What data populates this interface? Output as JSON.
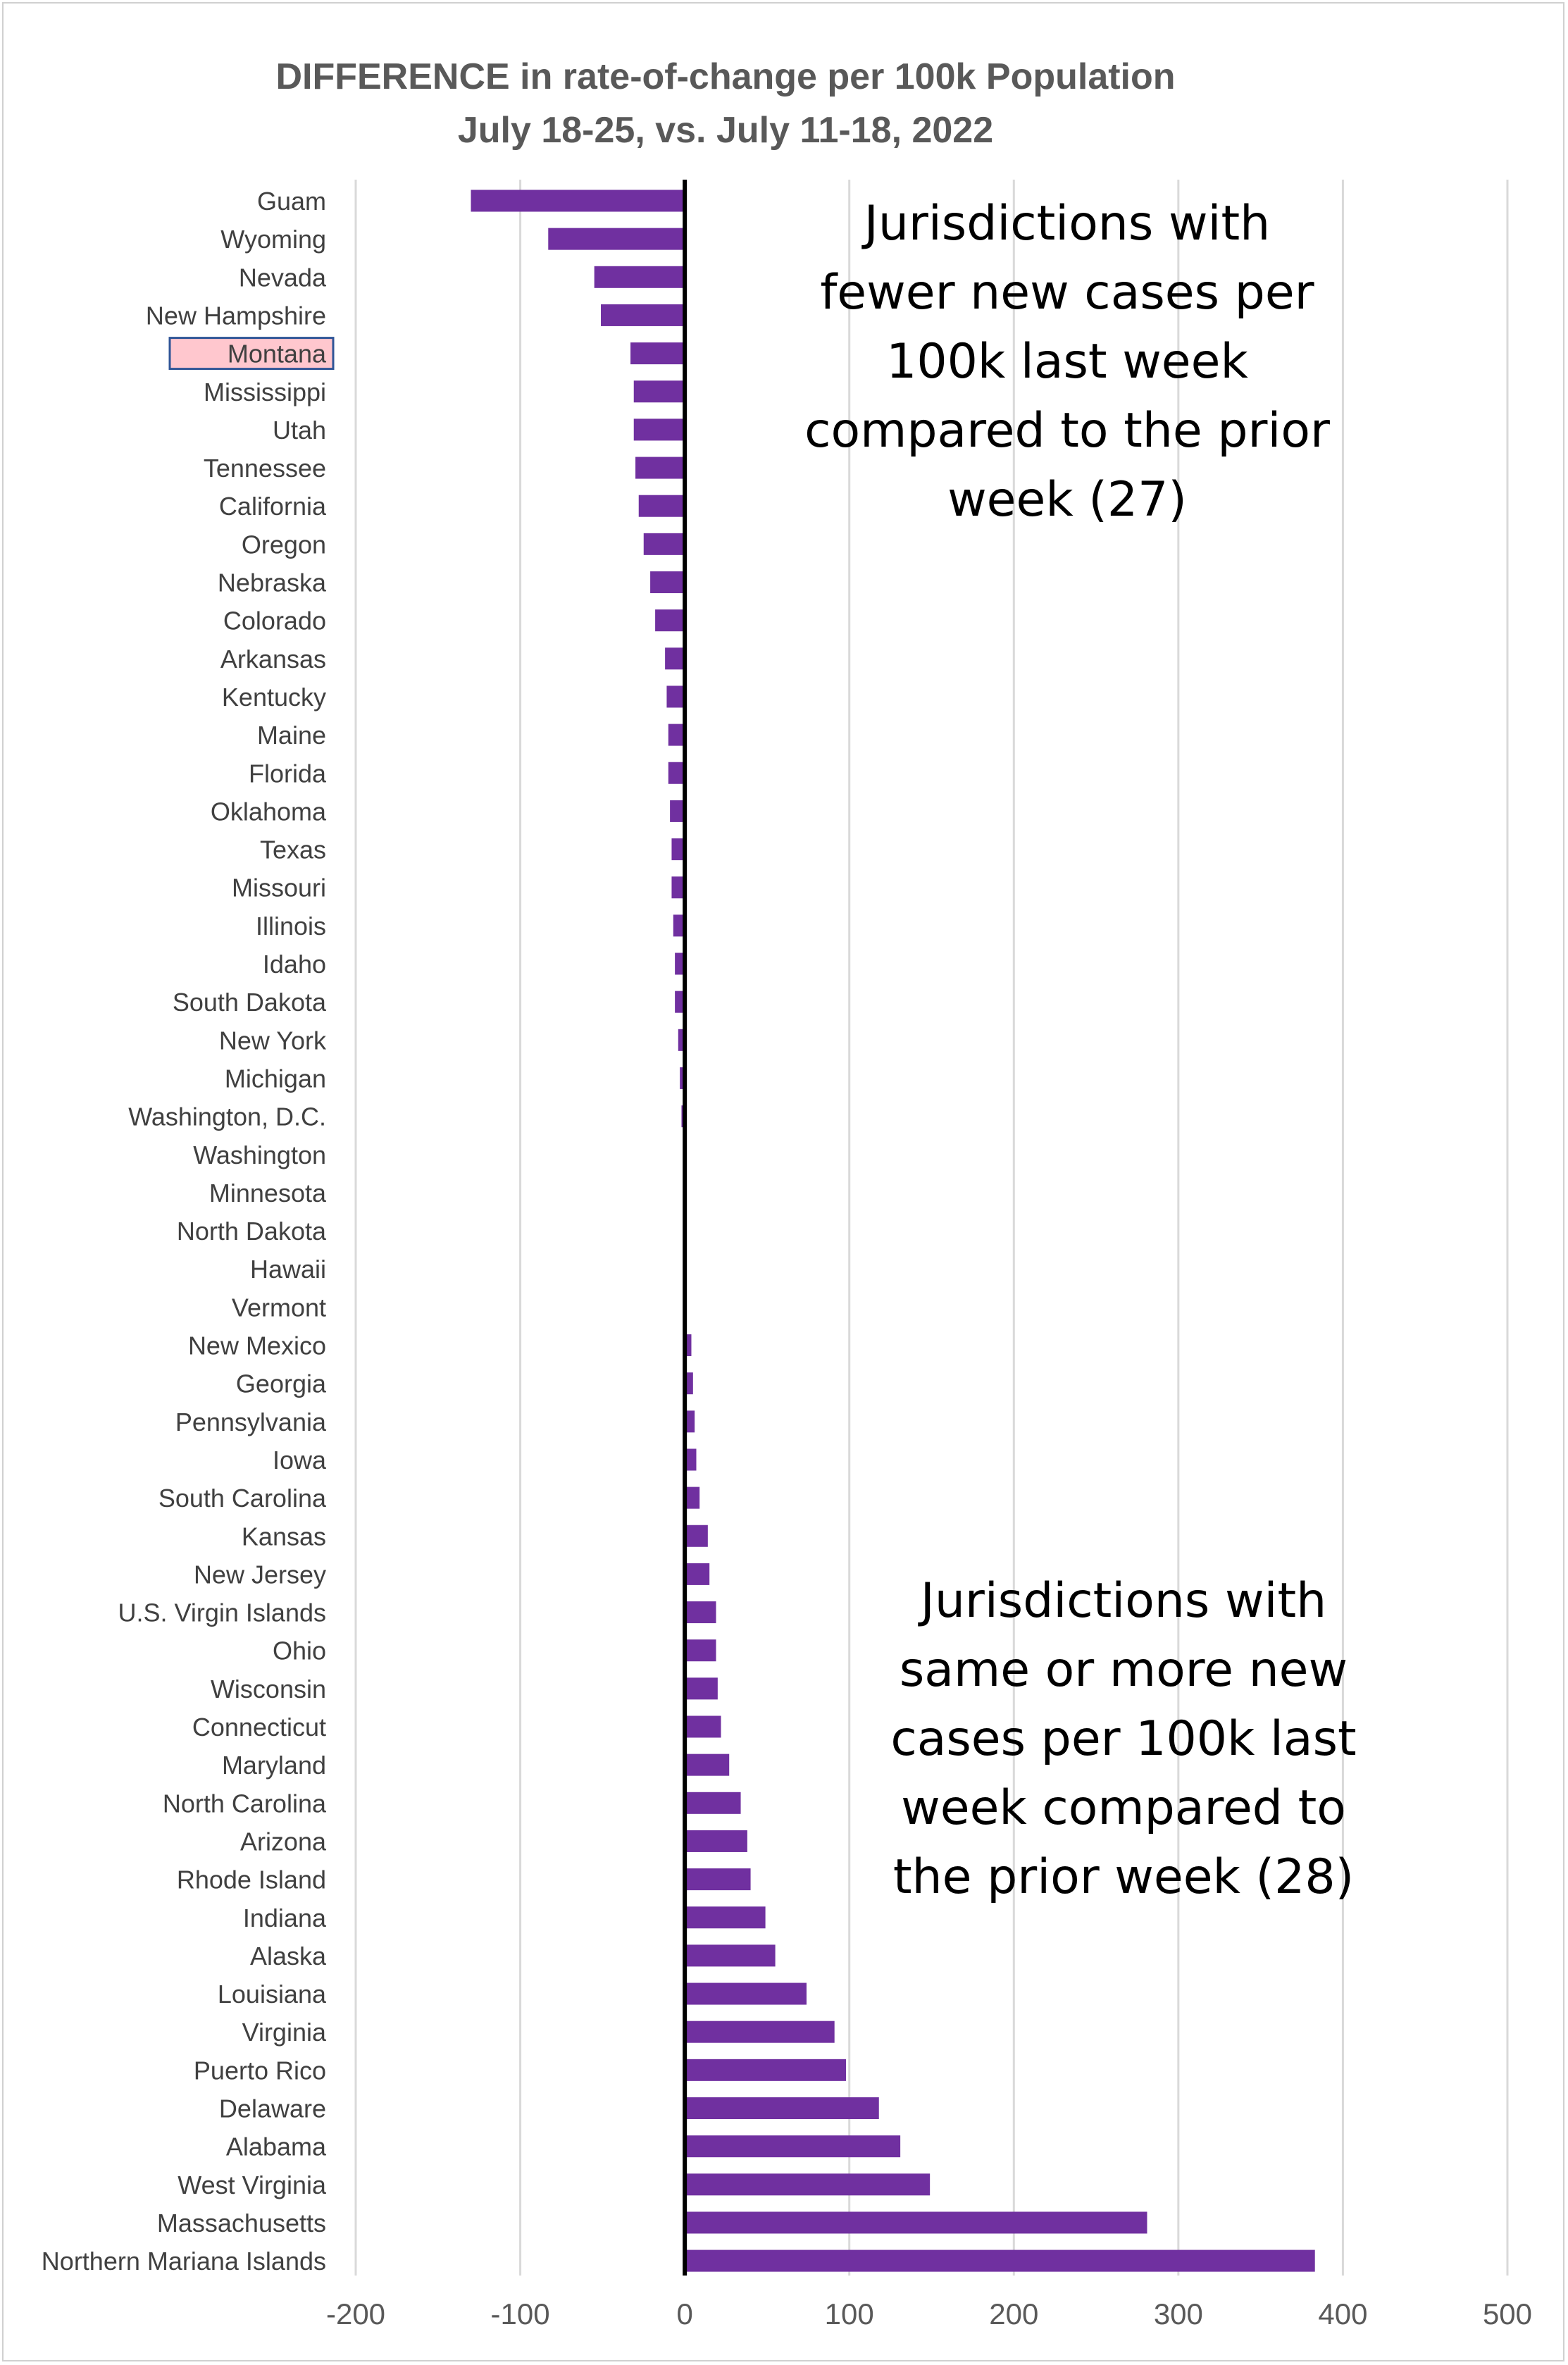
{
  "chart_data": {
    "type": "bar",
    "orientation": "horizontal",
    "title": "DIFFERENCE in rate-of-change per 100k Population",
    "subtitle": "July 18-25, vs. July 11-18, 2022",
    "xlabel": "",
    "ylabel": "",
    "xlim": [
      -200,
      500
    ],
    "x_ticks": [
      -200,
      -100,
      0,
      100,
      200,
      300,
      400,
      500
    ],
    "grid": "vertical",
    "highlighted_category": "Montana",
    "colors": {
      "bar": "#7030a0",
      "grid": "#d9d9d9",
      "zero_line": "#000000",
      "highlight_fill": "#ffc7ce",
      "highlight_border": "#2f5597"
    },
    "categories": [
      "Guam",
      "Wyoming",
      "Nevada",
      "New Hampshire",
      "Montana",
      "Mississippi",
      "Utah",
      "Tennessee",
      "California",
      "Oregon",
      "Nebraska",
      "Colorado",
      "Arkansas",
      "Kentucky",
      "Maine",
      "Florida",
      "Oklahoma",
      "Texas",
      "Missouri",
      "Illinois",
      "Idaho",
      "South Dakota",
      "New York",
      "Michigan",
      "Washington, D.C.",
      "Washington",
      "Minnesota",
      "North Dakota",
      "Hawaii",
      "Vermont",
      "New Mexico",
      "Georgia",
      "Pennsylvania",
      "Iowa",
      "South Carolina",
      "Kansas",
      "New Jersey",
      "U.S. Virgin Islands",
      "Ohio",
      "Wisconsin",
      "Connecticut",
      "Maryland",
      "North Carolina",
      "Arizona",
      "Rhode Island",
      "Indiana",
      "Alaska",
      "Louisiana",
      "Virginia",
      "Puerto Rico",
      "Delaware",
      "Alabama",
      "West Virginia",
      "Massachusetts",
      "Northern Mariana Islands"
    ],
    "values": [
      -130,
      -83,
      -55,
      -51,
      -33,
      -31,
      -31,
      -30,
      -28,
      -25,
      -21,
      -18,
      -12,
      -11,
      -10,
      -10,
      -9,
      -8,
      -8,
      -7,
      -6,
      -6,
      -4,
      -3,
      -2,
      0,
      0,
      0,
      0,
      1,
      4,
      5,
      6,
      7,
      9,
      14,
      15,
      19,
      19,
      20,
      22,
      27,
      34,
      38,
      40,
      49,
      55,
      74,
      91,
      98,
      118,
      131,
      149,
      281,
      383
    ],
    "annotations": [
      {
        "text": "Jurisdictions with\nfewer new cases per\n100k last week\ncompared to the prior\nweek (27)"
      },
      {
        "text": "Jurisdictions with\nsame or more new\ncases per 100k last\nweek compared to\nthe prior week (28)"
      }
    ]
  }
}
